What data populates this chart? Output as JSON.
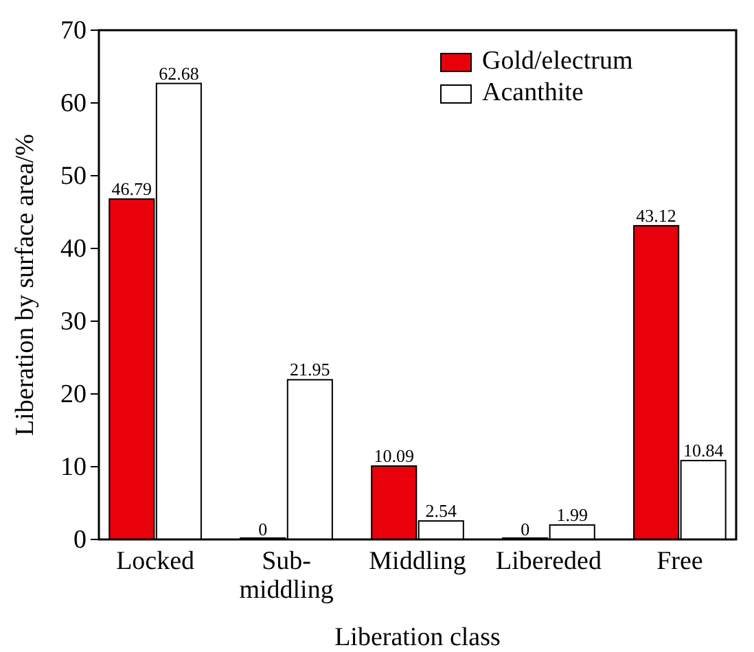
{
  "chart_data": {
    "type": "bar",
    "xlabel": "Liberation class",
    "ylabel": "Liberation by surface area/%",
    "categories": [
      "Locked",
      "Sub-middling",
      "Middling",
      "Libereded",
      "Free"
    ],
    "series": [
      {
        "name": "Gold/electrum",
        "color": "#e8000b",
        "values": [
          46.79,
          0,
          10.09,
          0,
          43.12
        ]
      },
      {
        "name": "Acanthite",
        "color": "#ffffff",
        "values": [
          62.68,
          21.95,
          2.54,
          1.99,
          10.84
        ]
      }
    ],
    "ylim": [
      0,
      70
    ],
    "yticks": [
      0,
      10,
      20,
      30,
      40,
      50,
      60,
      70
    ],
    "data_labels": true,
    "legend": "top right",
    "grid": false
  }
}
